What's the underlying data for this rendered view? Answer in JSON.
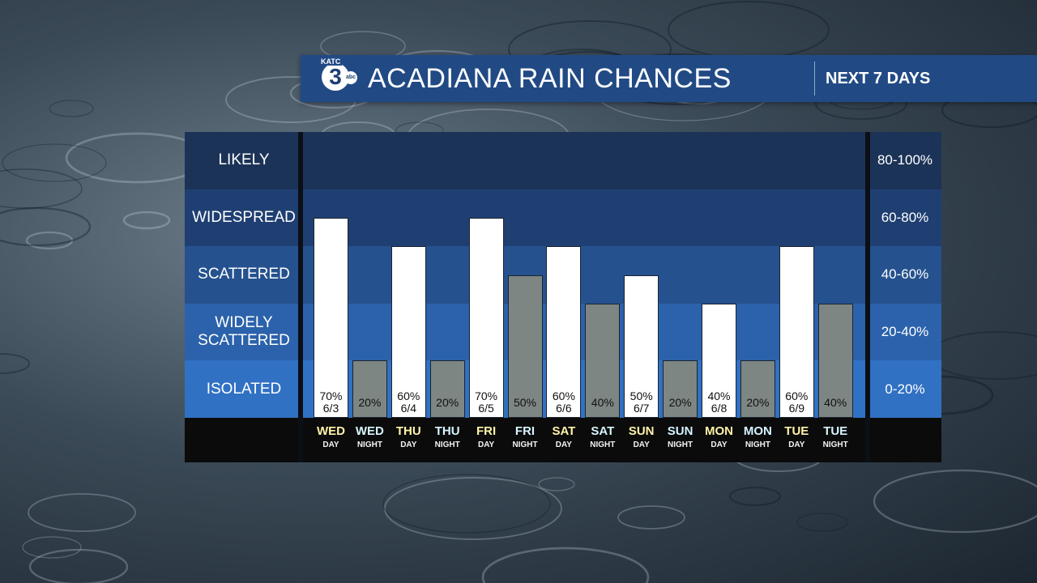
{
  "header": {
    "logo_call_sign": "KATC",
    "logo_number": "3",
    "logo_network": "abc",
    "title": "ACADIANA RAIN CHANCES",
    "subtitle": "NEXT 7 DAYS"
  },
  "colors": {
    "header_bg": "#214a85",
    "band_likely": "#1c3358",
    "band_widespread": "#1f3f72",
    "band_scattered": "#25528f",
    "band_widely_scattered": "#2b62ab",
    "band_isolated": "#3171c3",
    "day_bar": "#ffffff",
    "night_bar": "#7d8683",
    "day_text": "#fff3a8",
    "night_text": "#d6f5ff"
  },
  "chart_data": {
    "type": "bar",
    "title": "ACADIANA RAIN CHANCES",
    "subtitle": "NEXT 7 DAYS",
    "ylim": [
      0,
      100
    ],
    "y_unit": "%",
    "categories": [
      {
        "day": "WED",
        "part": "DAY",
        "date": "6/3"
      },
      {
        "day": "WED",
        "part": "NIGHT",
        "date": ""
      },
      {
        "day": "THU",
        "part": "DAY",
        "date": "6/4"
      },
      {
        "day": "THU",
        "part": "NIGHT",
        "date": ""
      },
      {
        "day": "FRI",
        "part": "DAY",
        "date": "6/5"
      },
      {
        "day": "FRI",
        "part": "NIGHT",
        "date": ""
      },
      {
        "day": "SAT",
        "part": "DAY",
        "date": "6/6"
      },
      {
        "day": "SAT",
        "part": "NIGHT",
        "date": ""
      },
      {
        "day": "SUN",
        "part": "DAY",
        "date": "6/7"
      },
      {
        "day": "SUN",
        "part": "NIGHT",
        "date": ""
      },
      {
        "day": "MON",
        "part": "DAY",
        "date": "6/8"
      },
      {
        "day": "MON",
        "part": "NIGHT",
        "date": ""
      },
      {
        "day": "TUE",
        "part": "DAY",
        "date": "6/9"
      },
      {
        "day": "TUE",
        "part": "NIGHT",
        "date": ""
      }
    ],
    "values": [
      70,
      20,
      60,
      20,
      70,
      50,
      60,
      40,
      50,
      20,
      40,
      20,
      60,
      40
    ],
    "value_labels": [
      "70%",
      "20%",
      "60%",
      "20%",
      "70%",
      "50%",
      "60%",
      "40%",
      "50%",
      "20%",
      "40%",
      "20%",
      "60%",
      "40%"
    ],
    "bands": [
      {
        "label": "LIKELY",
        "range": "80-100%",
        "min": 80,
        "max": 100
      },
      {
        "label": "WIDESPREAD",
        "range": "60-80%",
        "min": 60,
        "max": 80
      },
      {
        "label": "SCATTERED",
        "range": "40-60%",
        "min": 40,
        "max": 60
      },
      {
        "label": "WIDELY\nSCATTERED",
        "range": "20-40%",
        "min": 20,
        "max": 40
      },
      {
        "label": "ISOLATED",
        "range": "0-20%",
        "min": 0,
        "max": 20
      }
    ]
  }
}
